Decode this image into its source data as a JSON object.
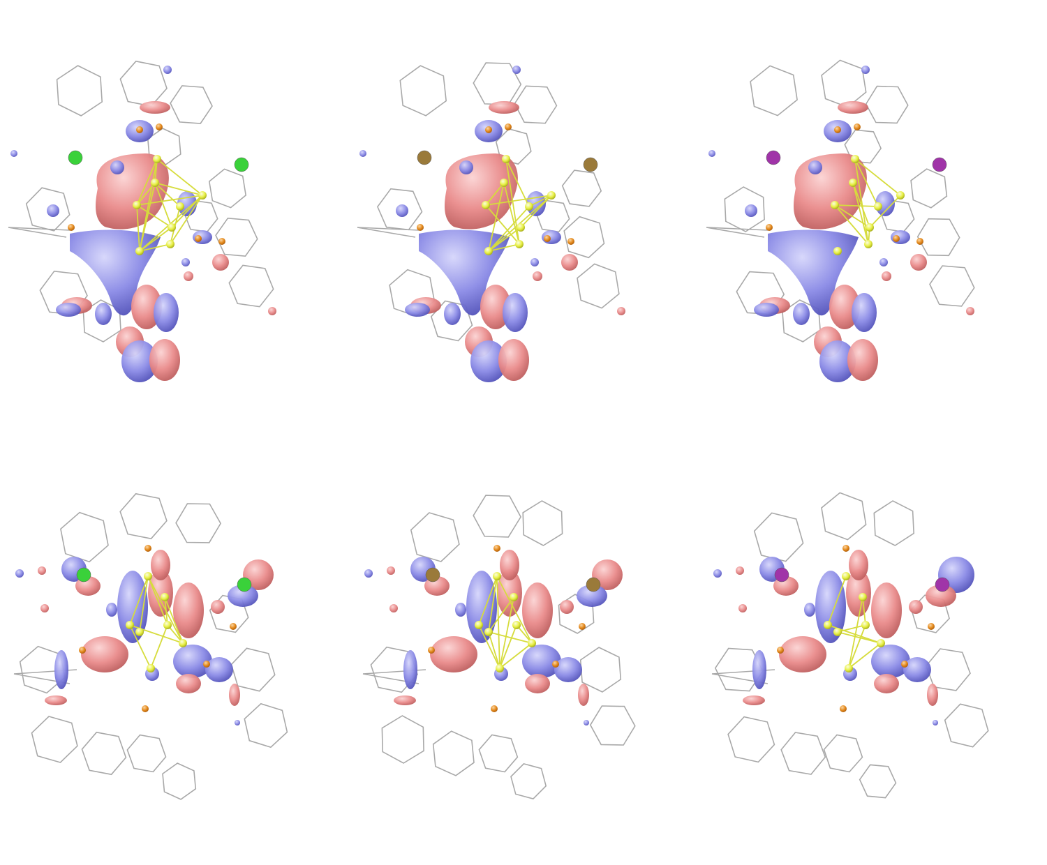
{
  "figure": {
    "rows": 2,
    "columns": 3,
    "panels": [
      {
        "row": 1,
        "col": 1,
        "halide_color": "#3ad13a"
      },
      {
        "row": 1,
        "col": 2,
        "halide_color": "#9a7a3a"
      },
      {
        "row": 1,
        "col": 3,
        "halide_color": "#a034a8"
      },
      {
        "row": 2,
        "col": 1,
        "halide_color": "#3ad13a"
      },
      {
        "row": 2,
        "col": 2,
        "halide_color": "#9a7a3a"
      },
      {
        "row": 2,
        "col": 3,
        "halide_color": "#a034a8"
      }
    ]
  },
  "colors": {
    "background": "#ffffff",
    "positive_lobe": "#e98a8a",
    "negative_lobe": "#8a8ae6",
    "ligand_frame": "#9a9a9a",
    "core_atom": "#e8f044",
    "phosphorus_atom": "#e58a1c",
    "core_bond": "#d6dc3c"
  }
}
